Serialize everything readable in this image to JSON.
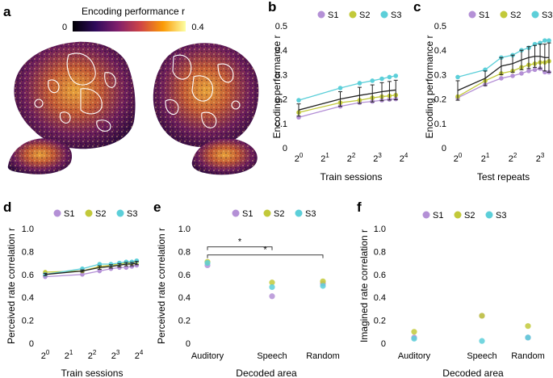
{
  "panels": {
    "a": {
      "label": "a",
      "colorbar": {
        "title": "Encoding performance r",
        "min_label": "0",
        "max_label": "0.4"
      }
    },
    "b": {
      "label": "b"
    },
    "c": {
      "label": "c"
    },
    "d": {
      "label": "d"
    },
    "e": {
      "label": "e"
    },
    "f": {
      "label": "f"
    }
  },
  "chart_data": [
    {
      "id": "b",
      "type": "line",
      "xlabel": "Train sessions",
      "ylabel": "Encoding performance r",
      "xscale": "log2",
      "xlim": [
        1,
        16
      ],
      "ylim": [
        0,
        0.5
      ],
      "xticks": [
        {
          "v": 1,
          "e": "0"
        },
        {
          "v": 2,
          "e": "1"
        },
        {
          "v": 4,
          "e": "2"
        },
        {
          "v": 8,
          "e": "3"
        },
        {
          "v": 16,
          "e": "4"
        }
      ],
      "yticks": [
        0,
        0.1,
        0.2,
        0.3,
        0.4,
        0.5
      ],
      "x": [
        1,
        3,
        5,
        7,
        9,
        11,
        13
      ],
      "series": [
        {
          "name": "S1",
          "color": "#b490d6",
          "values": [
            0.125,
            0.17,
            0.185,
            0.19,
            0.195,
            0.198,
            0.2
          ]
        },
        {
          "name": "S2",
          "color": "#c2c93a",
          "values": [
            0.145,
            0.185,
            0.195,
            0.205,
            0.21,
            0.213,
            0.216
          ]
        },
        {
          "name": "S3",
          "color": "#5ccfd9",
          "values": [
            0.195,
            0.245,
            0.265,
            0.275,
            0.283,
            0.29,
            0.295
          ]
        }
      ],
      "mean": [
        0.155,
        0.2,
        0.215,
        0.223,
        0.23,
        0.234,
        0.237
      ],
      "err": [
        0.025,
        0.03,
        0.033,
        0.035,
        0.037,
        0.038,
        0.04
      ]
    },
    {
      "id": "c",
      "type": "line",
      "xlabel": "Test repeats",
      "ylabel": "Encoding performance r",
      "xscale": "log2",
      "xlim": [
        1,
        10
      ],
      "ylim": [
        0,
        0.5
      ],
      "xticks": [
        {
          "v": 1,
          "e": "0"
        },
        {
          "v": 2,
          "e": "1"
        },
        {
          "v": 4,
          "e": "2"
        },
        {
          "v": 8,
          "e": "3"
        }
      ],
      "yticks": [
        0,
        0.1,
        0.2,
        0.3,
        0.4,
        0.5
      ],
      "x": [
        1,
        2,
        3,
        4,
        5,
        6,
        7,
        8,
        9,
        10
      ],
      "series": [
        {
          "name": "S1",
          "color": "#b490d6",
          "values": [
            0.205,
            0.26,
            0.285,
            0.295,
            0.305,
            0.315,
            0.32,
            0.325,
            0.31,
            0.31
          ]
        },
        {
          "name": "S2",
          "color": "#c2c93a",
          "values": [
            0.21,
            0.275,
            0.305,
            0.315,
            0.33,
            0.34,
            0.345,
            0.35,
            0.35,
            0.355
          ]
        },
        {
          "name": "S3",
          "color": "#5ccfd9",
          "values": [
            0.29,
            0.32,
            0.37,
            0.38,
            0.4,
            0.41,
            0.425,
            0.43,
            0.44,
            0.44
          ]
        }
      ],
      "mean": [
        0.235,
        0.285,
        0.335,
        0.345,
        0.36,
        0.37,
        0.375,
        0.375,
        0.37,
        0.37
      ],
      "err": [
        0.04,
        0.03,
        0.035,
        0.035,
        0.04,
        0.045,
        0.045,
        0.05,
        0.055,
        0.06
      ]
    },
    {
      "id": "d",
      "type": "line",
      "xlabel": "Train sessions",
      "ylabel": "Perceived rate correlation r",
      "xscale": "log2",
      "xlim": [
        1,
        16
      ],
      "ylim": [
        0,
        1.0
      ],
      "xticks": [
        {
          "v": 1,
          "e": "0"
        },
        {
          "v": 2,
          "e": "1"
        },
        {
          "v": 4,
          "e": "2"
        },
        {
          "v": 8,
          "e": "3"
        },
        {
          "v": 16,
          "e": "4"
        }
      ],
      "yticks": [
        0,
        0.2,
        0.4,
        0.6,
        0.8,
        1.0
      ],
      "x": [
        1,
        3,
        5,
        7,
        9,
        11,
        13,
        15
      ],
      "series": [
        {
          "name": "S1",
          "color": "#b490d6",
          "values": [
            0.58,
            0.6,
            0.63,
            0.65,
            0.66,
            0.66,
            0.67,
            0.68
          ]
        },
        {
          "name": "S2",
          "color": "#c2c93a",
          "values": [
            0.62,
            0.63,
            0.67,
            0.68,
            0.69,
            0.7,
            0.7,
            0.71
          ]
        },
        {
          "name": "S3",
          "color": "#5ccfd9",
          "values": [
            0.6,
            0.65,
            0.69,
            0.69,
            0.7,
            0.71,
            0.71,
            0.72
          ]
        }
      ],
      "mean": [
        0.6,
        0.63,
        0.66,
        0.67,
        0.68,
        0.69,
        0.69,
        0.7
      ],
      "err": [
        0.01,
        0.01,
        0.015,
        0.015,
        0.015,
        0.015,
        0.015,
        0.015
      ]
    },
    {
      "id": "e",
      "type": "scatter",
      "xlabel": "Decoded area",
      "ylabel": "Perceived rate correlation r",
      "ylim": [
        0,
        1.0
      ],
      "yticks": [
        0,
        0.2,
        0.4,
        0.6,
        0.8,
        1.0
      ],
      "categories": [
        "Auditory",
        "Speech",
        "Random"
      ],
      "series": [
        {
          "name": "S1",
          "color": "#b490d6",
          "values": [
            0.68,
            0.41,
            0.52
          ]
        },
        {
          "name": "S2",
          "color": "#c2c93a",
          "values": [
            0.71,
            0.53,
            0.54
          ]
        },
        {
          "name": "S3",
          "color": "#5ccfd9",
          "values": [
            0.7,
            0.49,
            0.5
          ]
        }
      ],
      "significance": [
        {
          "from": 0,
          "to": 1,
          "level": 0.84,
          "label": "*"
        },
        {
          "from": 0,
          "to": 2,
          "level": 0.77,
          "label": "*"
        }
      ]
    },
    {
      "id": "f",
      "type": "scatter",
      "xlabel": "Decoded area",
      "ylabel": "Imagined rate correlation r",
      "ylim": [
        0,
        1.0
      ],
      "yticks": [
        0,
        0.2,
        0.4,
        0.6,
        0.8,
        1.0
      ],
      "categories": [
        "Auditory",
        "Speech",
        "Random"
      ],
      "series": [
        {
          "name": "S1",
          "color": "#b490d6",
          "values": [
            0.05,
            0.24,
            0.05
          ]
        },
        {
          "name": "S2",
          "color": "#c2c93a",
          "values": [
            0.1,
            0.24,
            0.15
          ]
        },
        {
          "name": "S3",
          "color": "#5ccfd9",
          "values": [
            0.04,
            0.02,
            0.05
          ]
        }
      ]
    }
  ]
}
